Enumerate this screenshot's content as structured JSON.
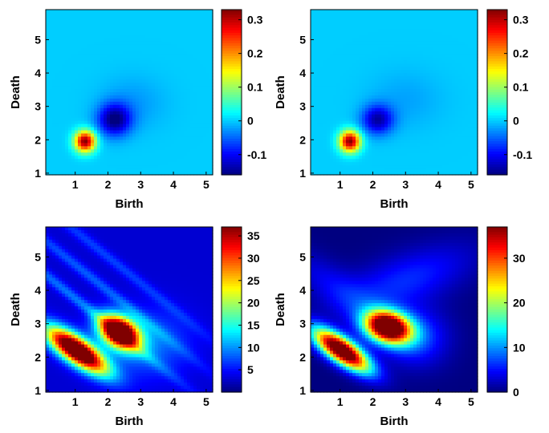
{
  "chart_data": [
    {
      "type": "heatmap",
      "panel": "top-left",
      "xlabel": "Birth",
      "ylabel": "Death",
      "xlim": [
        0.1,
        5.2
      ],
      "ylim": [
        0.95,
        5.9
      ],
      "xticks": [
        1,
        2,
        3,
        4,
        5
      ],
      "yticks": [
        1,
        2,
        3,
        4,
        5
      ],
      "colorbar": {
        "range": [
          -0.16,
          0.33
        ],
        "ticks": [
          0.3,
          0.2,
          0.1,
          0,
          -0.1
        ],
        "tick_labels": [
          "0.3",
          "0.2",
          "0.1",
          "0",
          "-0.1"
        ]
      },
      "colormap": "jet",
      "background_value": 0,
      "blobs": [
        {
          "x": 1.3,
          "y": 1.95,
          "sx": 0.22,
          "sy": 0.22,
          "value": 0.33
        },
        {
          "x": 2.2,
          "y": 2.6,
          "sx": 0.35,
          "sy": 0.33,
          "value": -0.16
        },
        {
          "x": 2.75,
          "y": 3.1,
          "sx": 0.7,
          "sy": 0.55,
          "value": -0.025
        }
      ]
    },
    {
      "type": "heatmap",
      "panel": "top-right",
      "xlabel": "Birth",
      "ylabel": "Death",
      "xlim": [
        0.1,
        5.2
      ],
      "ylim": [
        0.95,
        5.9
      ],
      "xticks": [
        1,
        2,
        3,
        4,
        5
      ],
      "yticks": [
        1,
        2,
        3,
        4,
        5
      ],
      "colorbar": {
        "range": [
          -0.16,
          0.33
        ],
        "ticks": [
          0.3,
          0.2,
          0.1,
          0,
          -0.1
        ],
        "tick_labels": [
          "0.3",
          "0.2",
          "0.1",
          "0",
          "-0.1"
        ]
      },
      "colormap": "jet",
      "background_value": 0,
      "blobs": [
        {
          "x": 1.3,
          "y": 1.95,
          "sx": 0.22,
          "sy": 0.22,
          "value": 0.33
        },
        {
          "x": 2.15,
          "y": 2.6,
          "sx": 0.33,
          "sy": 0.3,
          "value": -0.14
        },
        {
          "x": 3.0,
          "y": 3.2,
          "sx": 0.8,
          "sy": 0.6,
          "value": -0.02
        }
      ]
    },
    {
      "type": "heatmap",
      "panel": "bottom-left",
      "xlabel": "Birth",
      "ylabel": "Death",
      "xlim": [
        0.1,
        5.2
      ],
      "ylim": [
        0.95,
        5.9
      ],
      "xticks": [
        1,
        2,
        3,
        4,
        5
      ],
      "yticks": [
        1,
        2,
        3,
        4,
        5
      ],
      "colorbar": {
        "range": [
          0,
          37
        ],
        "ticks": [
          35,
          30,
          25,
          20,
          15,
          10,
          5
        ],
        "tick_labels": [
          "35",
          "30",
          "25",
          "20",
          "15",
          "10",
          "5"
        ]
      },
      "colormap": "jet",
      "background_value": 3,
      "blobs": [
        {
          "x": 1.05,
          "y": 2.2,
          "s_along": 0.75,
          "s_across": 0.26,
          "angle_deg": -34,
          "value": 45
        },
        {
          "x": 2.35,
          "y": 2.75,
          "s_along": 0.45,
          "s_across": 0.3,
          "angle_deg": -30,
          "value": 45
        },
        {
          "x": 3.2,
          "y": 2.4,
          "s_along": 0.9,
          "s_across": 0.7,
          "angle_deg": 0,
          "value": 6
        },
        {
          "x": 1.2,
          "y": 3.6,
          "s_along": 2.8,
          "s_across": 0.12,
          "angle_deg": -38,
          "value": 6
        },
        {
          "x": 1.6,
          "y": 4.3,
          "s_along": 2.8,
          "s_across": 0.12,
          "angle_deg": -38,
          "value": 5
        },
        {
          "x": 2.0,
          "y": 5.0,
          "s_along": 2.8,
          "s_across": 0.12,
          "angle_deg": -38,
          "value": 4
        }
      ]
    },
    {
      "type": "heatmap",
      "panel": "bottom-right",
      "xlabel": "Birth",
      "ylabel": "Death",
      "xlim": [
        0.1,
        5.2
      ],
      "ylim": [
        0.95,
        5.9
      ],
      "xticks": [
        1,
        2,
        3,
        4,
        5
      ],
      "yticks": [
        1,
        2,
        3,
        4,
        5
      ],
      "colorbar": {
        "range": [
          0,
          37
        ],
        "ticks": [
          30,
          20,
          10,
          0
        ],
        "tick_labels": [
          "30",
          "20",
          "10",
          "0"
        ]
      },
      "colormap": "jet",
      "background_value": 0,
      "blobs": [
        {
          "x": 1.05,
          "y": 2.2,
          "s_along": 0.7,
          "s_across": 0.25,
          "angle_deg": -34,
          "value": 45
        },
        {
          "x": 2.45,
          "y": 2.9,
          "s_along": 0.5,
          "s_across": 0.32,
          "angle_deg": -15,
          "value": 45
        },
        {
          "x": 3.0,
          "y": 4.3,
          "s_along": 1.5,
          "s_across": 0.55,
          "angle_deg": 20,
          "value": 6
        },
        {
          "x": 1.0,
          "y": 4.0,
          "s_along": 1.5,
          "s_across": 0.4,
          "angle_deg": -35,
          "value": 4
        },
        {
          "x": 3.3,
          "y": 2.6,
          "s_along": 0.7,
          "s_across": 0.6,
          "angle_deg": 0,
          "value": 7
        }
      ]
    }
  ]
}
